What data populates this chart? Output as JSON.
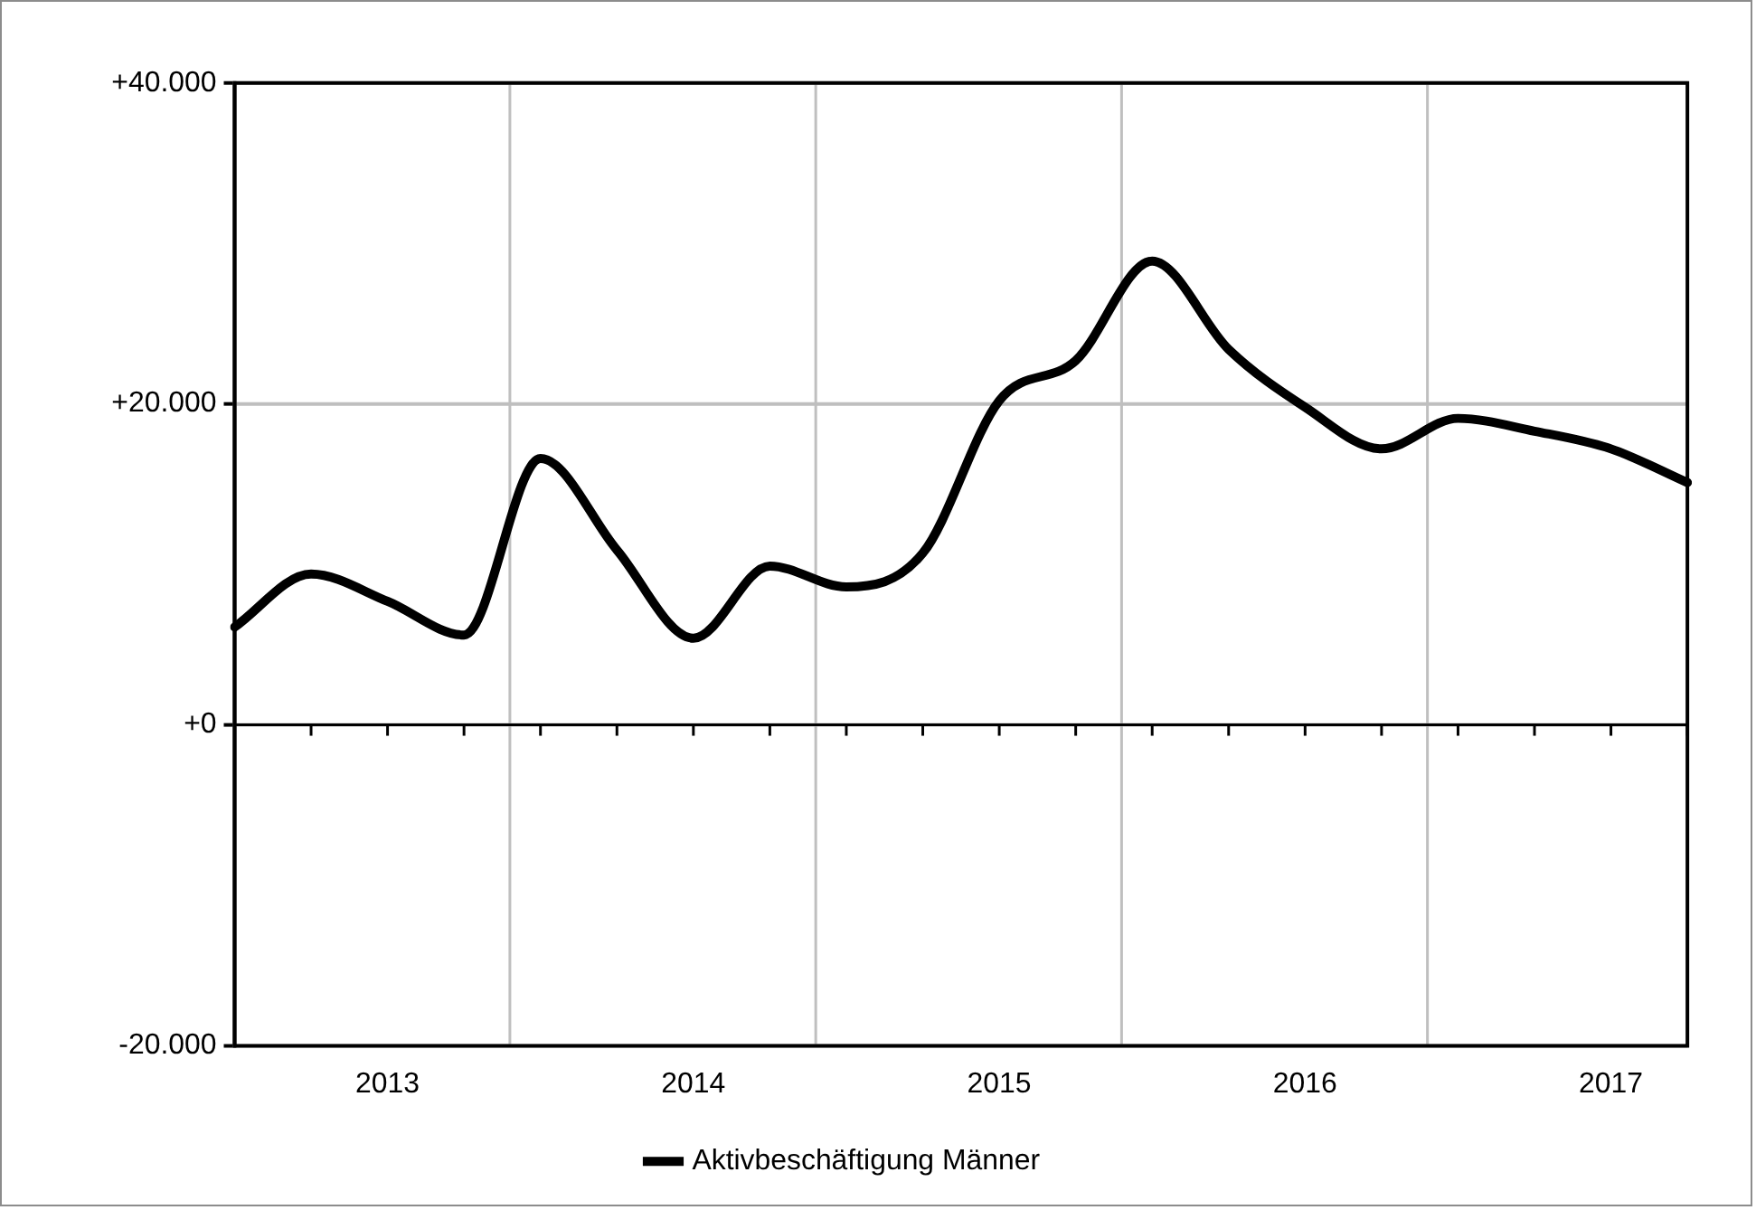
{
  "chart_data": {
    "type": "line",
    "categories": [
      null,
      null,
      "2013",
      null,
      null,
      null,
      "2014",
      null,
      null,
      null,
      "2015",
      null,
      null,
      null,
      "2016",
      null,
      null,
      null,
      "2017",
      null
    ],
    "series": [
      {
        "name": "Aktivbeschäftigung Männer",
        "color": "#000000",
        "values": [
          6100,
          9400,
          7700,
          5600,
          16600,
          10900,
          5400,
          9900,
          8600,
          10700,
          20200,
          22700,
          28900,
          23400,
          19800,
          17200,
          19100,
          18300,
          17200,
          15100
        ]
      }
    ],
    "ylim": [
      -20000,
      40000
    ],
    "yticks": [
      {
        "value": -20000,
        "label": "-20.000"
      },
      {
        "value": 0,
        "label": "+0"
      },
      {
        "value": 20000,
        "label": "+20.000"
      },
      {
        "value": 40000,
        "label": "+40.000"
      }
    ],
    "grid": true,
    "legend": "bottom",
    "marker": "none",
    "line_style": "solid"
  }
}
